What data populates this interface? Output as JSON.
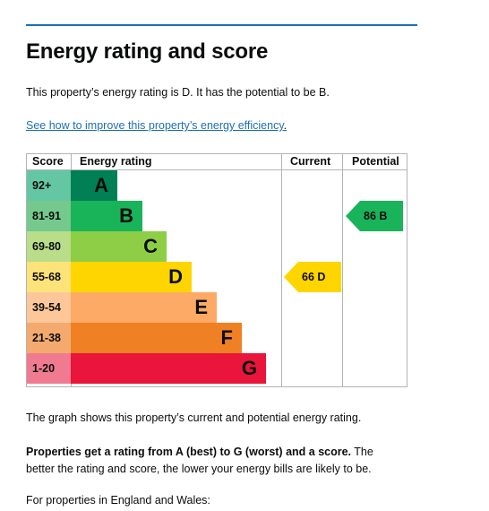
{
  "title": "Energy rating and score",
  "intro": "This property’s energy rating is D. It has the potential to be B.",
  "improve_link": "See how to improve this property’s energy efficiency",
  "improve_link_suffix": ".",
  "table_headers": {
    "score": "Score",
    "rating": "Energy rating",
    "current": "Current",
    "potential": "Potential"
  },
  "bands": [
    {
      "score": "92+",
      "letter": "A",
      "color": "#008054",
      "score_color": "#64c7a3"
    },
    {
      "score": "81-91",
      "letter": "B",
      "color": "#19b459",
      "score_color": "#75c98d"
    },
    {
      "score": "69-80",
      "letter": "C",
      "color": "#8dce46",
      "score_color": "#b9dd89"
    },
    {
      "score": "55-68",
      "letter": "D",
      "color": "#ffd500",
      "score_color": "#fee37a"
    },
    {
      "score": "39-54",
      "letter": "E",
      "color": "#fcaa65",
      "score_color": "#fdc79a"
    },
    {
      "score": "21-38",
      "letter": "F",
      "color": "#ef8023",
      "score_color": "#f4aa6f"
    },
    {
      "score": "1-20",
      "letter": "G",
      "color": "#e9153b",
      "score_color": "#f07b90"
    }
  ],
  "current": {
    "label": "66  D",
    "band": "D",
    "color": "#ffd500",
    "text_color": "#0b0c0c"
  },
  "potential": {
    "label": "86  B",
    "band": "B",
    "color": "#19b459",
    "text_color": "#0b0c0c"
  },
  "graph_caption": "The graph shows this property’s current and potential energy rating.",
  "ratings_bold": "Properties get a rating from A (best) to G (worst) and a score.",
  "ratings_rest": " The better the rating and score, the lower your energy bills are likely to be.",
  "england_wales": "For properties in England and Wales:"
}
